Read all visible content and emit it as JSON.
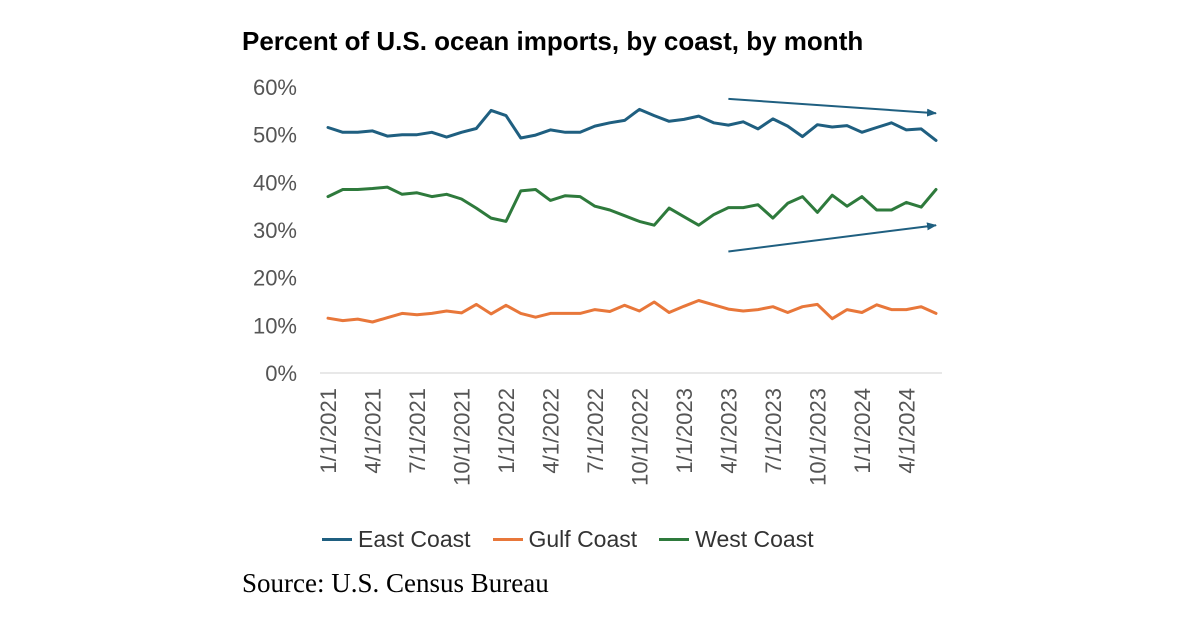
{
  "title": "Percent of U.S. ocean imports, by coast, by month",
  "source": "Source: U.S. Census Bureau",
  "chart_data": {
    "type": "line",
    "title": "Percent of U.S. ocean imports, by coast, by month",
    "xlabel": "",
    "ylabel": "",
    "ylim": [
      0,
      60
    ],
    "yticks": [
      "0%",
      "10%",
      "20%",
      "30%",
      "40%",
      "50%",
      "60%"
    ],
    "xtick_labels": [
      "1/1/2021",
      "4/1/2021",
      "7/1/2021",
      "10/1/2021",
      "1/1/2022",
      "4/1/2022",
      "7/1/2022",
      "10/1/2022",
      "1/1/2023",
      "4/1/2023",
      "7/1/2023",
      "10/1/2023",
      "1/1/2024",
      "4/1/2024"
    ],
    "x": [
      "2021-01",
      "2021-02",
      "2021-03",
      "2021-04",
      "2021-05",
      "2021-06",
      "2021-07",
      "2021-08",
      "2021-09",
      "2021-10",
      "2021-11",
      "2021-12",
      "2022-01",
      "2022-02",
      "2022-03",
      "2022-04",
      "2022-05",
      "2022-06",
      "2022-07",
      "2022-08",
      "2022-09",
      "2022-10",
      "2022-11",
      "2022-12",
      "2023-01",
      "2023-02",
      "2023-03",
      "2023-04",
      "2023-05",
      "2023-06",
      "2023-07",
      "2023-08",
      "2023-09",
      "2023-10",
      "2023-11",
      "2023-12",
      "2024-01",
      "2024-02",
      "2024-03",
      "2024-04",
      "2024-05",
      "2024-06"
    ],
    "grid": false,
    "legend_position": "bottom",
    "series": [
      {
        "name": "East Coast",
        "color": "#1f5f80",
        "values": [
          51.5,
          50.5,
          50.5,
          50.8,
          49.7,
          50.0,
          50.0,
          50.5,
          49.5,
          50.5,
          51.3,
          55.1,
          54.0,
          49.3,
          49.9,
          51.0,
          50.5,
          50.5,
          51.8,
          52.5,
          53.0,
          55.3,
          54.0,
          52.8,
          53.2,
          53.9,
          52.5,
          52.0,
          52.7,
          51.2,
          53.3,
          51.8,
          49.6,
          52.1,
          51.6,
          51.9,
          50.5,
          51.5,
          52.5,
          51.0,
          51.2,
          48.8
        ]
      },
      {
        "name": "Gulf Coast",
        "color": "#e8773a",
        "values": [
          11.5,
          11.0,
          11.3,
          10.7,
          11.6,
          12.5,
          12.2,
          12.5,
          13.0,
          12.6,
          14.4,
          12.4,
          14.2,
          12.5,
          11.7,
          12.5,
          12.5,
          12.5,
          13.3,
          12.9,
          14.2,
          13.0,
          14.9,
          12.7,
          14.0,
          15.2,
          14.3,
          13.4,
          13.0,
          13.3,
          13.9,
          12.7,
          13.9,
          14.4,
          11.4,
          13.3,
          12.7,
          14.3,
          13.3,
          13.3,
          13.9,
          12.5
        ]
      },
      {
        "name": "West Coast",
        "color": "#2e7a3c",
        "values": [
          37.0,
          38.5,
          38.5,
          38.7,
          39.0,
          37.5,
          37.8,
          37.0,
          37.5,
          36.5,
          34.6,
          32.5,
          31.8,
          38.2,
          38.5,
          36.2,
          37.2,
          37.0,
          35.0,
          34.2,
          33.0,
          31.8,
          31.0,
          34.6,
          32.8,
          31.0,
          33.2,
          34.7,
          34.7,
          35.3,
          32.5,
          35.6,
          37.0,
          33.7,
          37.3,
          35.0,
          37.0,
          34.2,
          34.2,
          35.8,
          34.8,
          38.5
        ]
      }
    ],
    "annotations": [
      {
        "type": "arrow",
        "description": "downward trend arrow over East Coast",
        "from": [
          "2023-04",
          57.5
        ],
        "to": [
          "2024-06",
          54.5
        ]
      },
      {
        "type": "arrow",
        "description": "upward trend arrow under West Coast",
        "from": [
          "2023-04",
          25.5
        ],
        "to": [
          "2024-06",
          31.0
        ]
      }
    ]
  }
}
